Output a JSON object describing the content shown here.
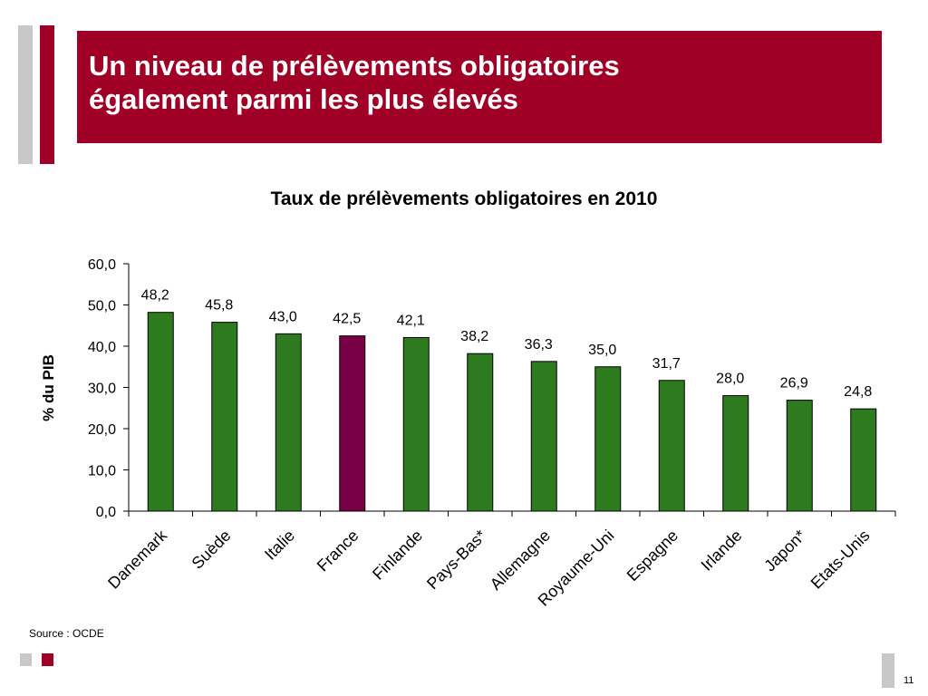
{
  "slide": {
    "title_line1": "Un niveau de prélèvements obligatoires",
    "title_line2": "également parmi les plus élevés",
    "source": "Source : OCDE",
    "page_number": "11",
    "colors": {
      "brand_red": "#a00026",
      "deco_gray": "#c8c8c8"
    }
  },
  "chart_data": {
    "type": "bar",
    "title": "Taux de prélèvements obligatoires en 2010",
    "xlabel": "",
    "ylabel": "% du PIB",
    "ylim": [
      0,
      60
    ],
    "yticks": [
      "0,0",
      "10,0",
      "20,0",
      "30,0",
      "40,0",
      "50,0",
      "60,0"
    ],
    "grid": false,
    "categories": [
      "Danemark",
      "Suède",
      "Italie",
      "France",
      "Finlande",
      "Pays-Bas*",
      "Allemagne",
      "Royaume-Uni",
      "Espagne",
      "Irlande",
      "Japon*",
      "Etats-Unis"
    ],
    "values": [
      48.2,
      45.8,
      43.0,
      42.5,
      42.1,
      38.2,
      36.3,
      35.0,
      31.7,
      28.0,
      26.9,
      24.8
    ],
    "value_labels": [
      "48,2",
      "45,8",
      "43,0",
      "42,5",
      "42,1",
      "38,2",
      "36,3",
      "35,0",
      "31,7",
      "28,0",
      "26,9",
      "24,8"
    ],
    "bar_color": "#2e7a1f",
    "highlight_category": "France",
    "highlight_color": "#7a0046"
  }
}
